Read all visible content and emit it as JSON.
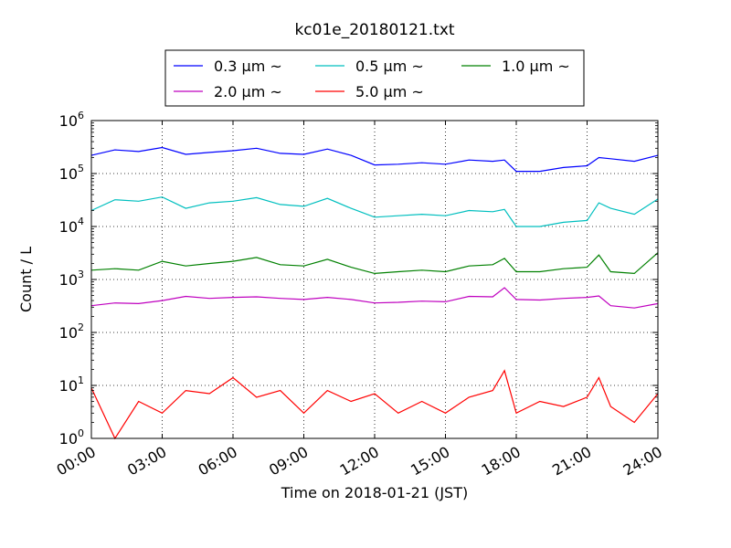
{
  "chart_data": {
    "type": "line",
    "title": "kc01e_20180121.txt",
    "xlabel": "Time on 2018-01-21 (JST)",
    "ylabel": "Count / L",
    "y_scale": "log",
    "ylim": [
      1,
      1000000
    ],
    "xlim": [
      "00:00",
      "24:00"
    ],
    "x_ticks": [
      "00:00",
      "03:00",
      "06:00",
      "09:00",
      "12:00",
      "15:00",
      "18:00",
      "21:00",
      "24:00"
    ],
    "y_ticks": [
      {
        "base": "10",
        "exp": "0"
      },
      {
        "base": "10",
        "exp": "1"
      },
      {
        "base": "10",
        "exp": "2"
      },
      {
        "base": "10",
        "exp": "3"
      },
      {
        "base": "10",
        "exp": "4"
      },
      {
        "base": "10",
        "exp": "5"
      },
      {
        "base": "10",
        "exp": "6"
      }
    ],
    "grid": true,
    "legend_position": "top-center",
    "x": [
      "00:00",
      "01:00",
      "02:00",
      "03:00",
      "04:00",
      "05:00",
      "06:00",
      "07:00",
      "08:00",
      "09:00",
      "10:00",
      "11:00",
      "12:00",
      "13:00",
      "14:00",
      "15:00",
      "16:00",
      "17:00",
      "17:30",
      "18:00",
      "19:00",
      "20:00",
      "21:00",
      "21:30",
      "22:00",
      "23:00",
      "24:00"
    ],
    "series": [
      {
        "name": "0.3 μm ~",
        "color": "#0000ff",
        "values": [
          220000,
          280000,
          260000,
          310000,
          230000,
          250000,
          270000,
          300000,
          240000,
          230000,
          290000,
          220000,
          145000,
          150000,
          160000,
          150000,
          180000,
          170000,
          180000,
          110000,
          110000,
          130000,
          140000,
          200000,
          190000,
          170000,
          220000
        ]
      },
      {
        "name": "0.5 μm ~",
        "color": "#00bfbf",
        "values": [
          20000,
          32000,
          30000,
          36000,
          22000,
          28000,
          30000,
          35000,
          26000,
          24000,
          34000,
          22000,
          15000,
          16000,
          17000,
          16000,
          20000,
          19000,
          21000,
          10000,
          10000,
          12000,
          13000,
          28000,
          22000,
          17000,
          33000
        ]
      },
      {
        "name": "1.0 μm ~",
        "color": "#008000",
        "values": [
          1500,
          1600,
          1500,
          2200,
          1800,
          2000,
          2200,
          2600,
          1900,
          1800,
          2400,
          1700,
          1300,
          1400,
          1500,
          1400,
          1800,
          1900,
          2500,
          1400,
          1400,
          1600,
          1700,
          2900,
          1400,
          1300,
          3200
        ]
      },
      {
        "name": "2.0 μm ~",
        "color": "#bf00bf",
        "values": [
          320,
          360,
          350,
          400,
          480,
          440,
          460,
          470,
          440,
          420,
          460,
          420,
          360,
          370,
          390,
          380,
          480,
          470,
          700,
          420,
          410,
          440,
          460,
          490,
          320,
          290,
          350
        ]
      },
      {
        "name": "5.0 μm ~",
        "color": "#ff0000",
        "values": [
          9,
          1,
          5,
          3,
          8,
          7,
          14,
          6,
          8,
          3,
          8,
          5,
          7,
          3,
          5,
          3,
          6,
          8,
          19,
          3,
          5,
          4,
          6,
          14,
          4,
          2,
          7
        ]
      }
    ]
  }
}
